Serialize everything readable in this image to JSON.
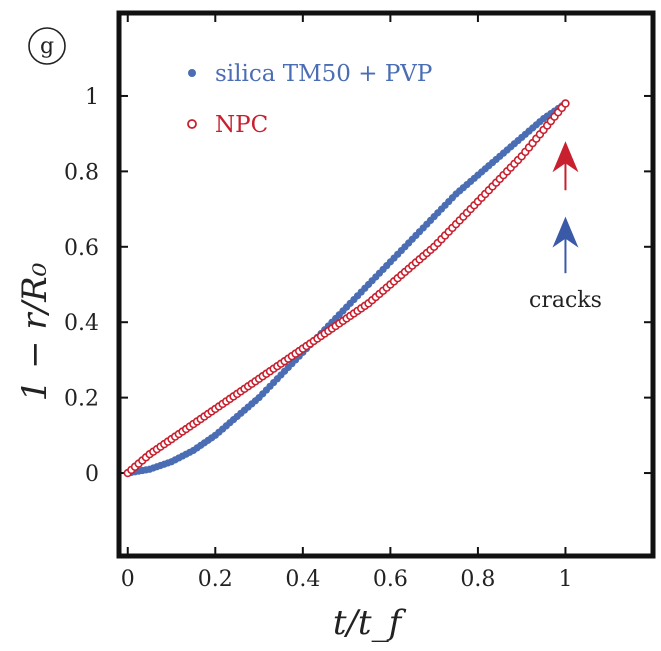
{
  "chart_data": {
    "type": "scatter",
    "panel_label": "g",
    "xlabel": "t/t_f",
    "ylabel": "1 − r/R₀",
    "xlim": [
      -0.02,
      1.2
    ],
    "ylim": [
      -0.22,
      1.22
    ],
    "xticks": [
      0,
      0.2,
      0.4,
      0.6,
      0.8,
      1
    ],
    "xtick_labels": [
      "0",
      "0.2",
      "0.4",
      "0.6",
      "0.8",
      "1"
    ],
    "yticks": [
      0,
      0.2,
      0.4,
      0.6,
      0.8,
      1
    ],
    "ytick_labels": [
      "0",
      "0.2",
      "0.4",
      "0.6",
      "0.8",
      "1"
    ],
    "grid": false,
    "legend_position": "top-left",
    "series": [
      {
        "name": "silica TM50 + PVP",
        "color": "#4a6db3",
        "marker": "filled-circle",
        "x": [
          0.0,
          0.05,
          0.1,
          0.15,
          0.2,
          0.25,
          0.3,
          0.35,
          0.4,
          0.45,
          0.5,
          0.55,
          0.6,
          0.65,
          0.7,
          0.75,
          0.8,
          0.85,
          0.9,
          0.95,
          1.0
        ],
        "y": [
          0.0,
          0.01,
          0.03,
          0.06,
          0.1,
          0.15,
          0.2,
          0.26,
          0.32,
          0.38,
          0.44,
          0.5,
          0.56,
          0.62,
          0.68,
          0.74,
          0.79,
          0.84,
          0.89,
          0.94,
          0.98
        ]
      },
      {
        "name": "NPC",
        "color": "#c8202e",
        "marker": "open-circle",
        "x": [
          0.0,
          0.05,
          0.1,
          0.15,
          0.2,
          0.25,
          0.3,
          0.35,
          0.4,
          0.45,
          0.5,
          0.55,
          0.6,
          0.65,
          0.7,
          0.75,
          0.8,
          0.85,
          0.9,
          0.95,
          1.0
        ],
        "y": [
          0.0,
          0.05,
          0.09,
          0.13,
          0.17,
          0.21,
          0.25,
          0.29,
          0.33,
          0.37,
          0.41,
          0.45,
          0.5,
          0.55,
          0.6,
          0.66,
          0.72,
          0.78,
          0.84,
          0.91,
          0.98
        ]
      }
    ],
    "annotations": [
      {
        "text": "cracks",
        "x": 1.0,
        "y": 0.44
      }
    ],
    "arrows": [
      {
        "color": "#c8202e",
        "x": 1.0,
        "y_from": 0.75,
        "y_to": 0.88
      },
      {
        "color": "#3a5aa8",
        "x": 1.0,
        "y_from": 0.53,
        "y_to": 0.68
      }
    ]
  }
}
